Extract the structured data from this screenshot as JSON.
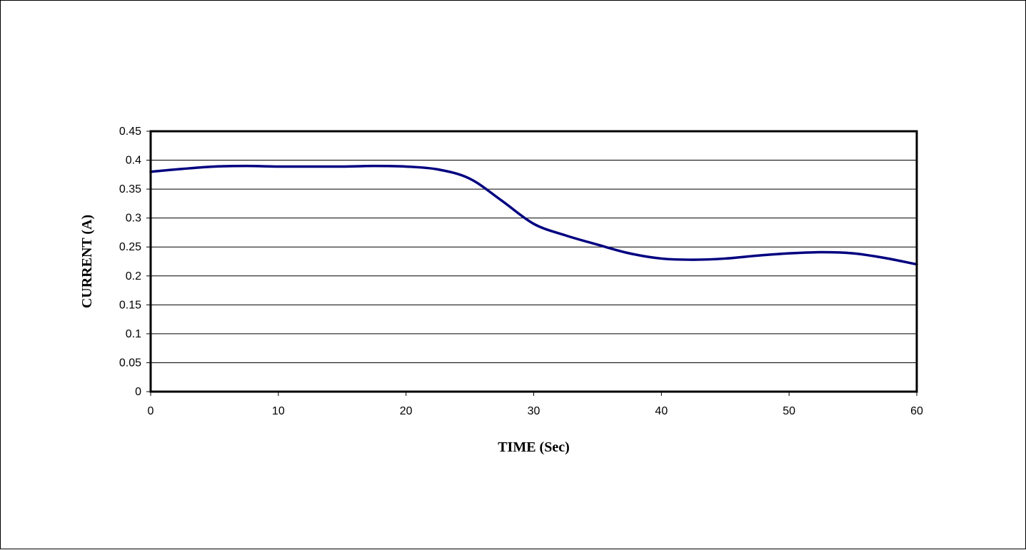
{
  "chart_data": {
    "type": "line",
    "title": "",
    "xlabel": "TIME (Sec)",
    "ylabel": "CURRENT (A)",
    "xlim": [
      0,
      60
    ],
    "ylim": [
      0,
      0.45
    ],
    "x_ticks": [
      "0",
      "10",
      "20",
      "30",
      "40",
      "50",
      "60"
    ],
    "y_ticks": [
      "0",
      "0.05",
      "0.1",
      "0.15",
      "0.2",
      "0.25",
      "0.3",
      "0.35",
      "0.4",
      "0.45"
    ],
    "grid": "horizontal",
    "legend": "none",
    "series": [
      {
        "color": "#000080",
        "x": [
          0,
          2.5,
          5,
          7.5,
          10,
          12.5,
          15,
          17.5,
          20,
          22.5,
          25,
          27.5,
          30,
          32.5,
          35,
          37.5,
          40,
          42.5,
          45,
          47.5,
          50,
          52.5,
          55,
          57.5,
          60
        ],
        "y": [
          0.38,
          0.385,
          0.389,
          0.39,
          0.389,
          0.389,
          0.389,
          0.39,
          0.389,
          0.384,
          0.368,
          0.33,
          0.29,
          0.27,
          0.254,
          0.239,
          0.23,
          0.228,
          0.23,
          0.235,
          0.239,
          0.241,
          0.239,
          0.231,
          0.22
        ]
      }
    ]
  }
}
